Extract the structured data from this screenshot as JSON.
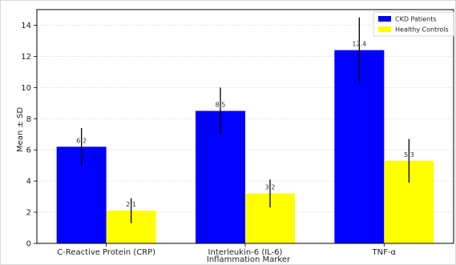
{
  "chart_data": {
    "type": "bar",
    "categories": [
      "C-Reactive Protein (CRP)",
      "Interleukin-6 (IL-6)",
      "TNF-α"
    ],
    "series": [
      {
        "name": "CKD Patients",
        "color": "#0000ff",
        "values": [
          6.2,
          8.5,
          12.4
        ],
        "value_labels": [
          "6.2",
          "8.5",
          "12.4"
        ],
        "sd": [
          1.2,
          1.5,
          2.1
        ]
      },
      {
        "name": "Healthy Controls",
        "color": "#ffff00",
        "values": [
          2.1,
          3.2,
          5.3
        ],
        "value_labels": [
          "2.1",
          "3.2",
          "5.3"
        ],
        "sd": [
          0.8,
          0.9,
          1.4
        ]
      }
    ],
    "xlabel": "Inflammation Marker",
    "ylabel": "Mean ± SD",
    "ylim": [
      0,
      15
    ],
    "yticks": [
      0,
      2,
      4,
      6,
      8,
      10,
      12,
      14
    ],
    "grid": true,
    "legend_position": "top-right"
  }
}
